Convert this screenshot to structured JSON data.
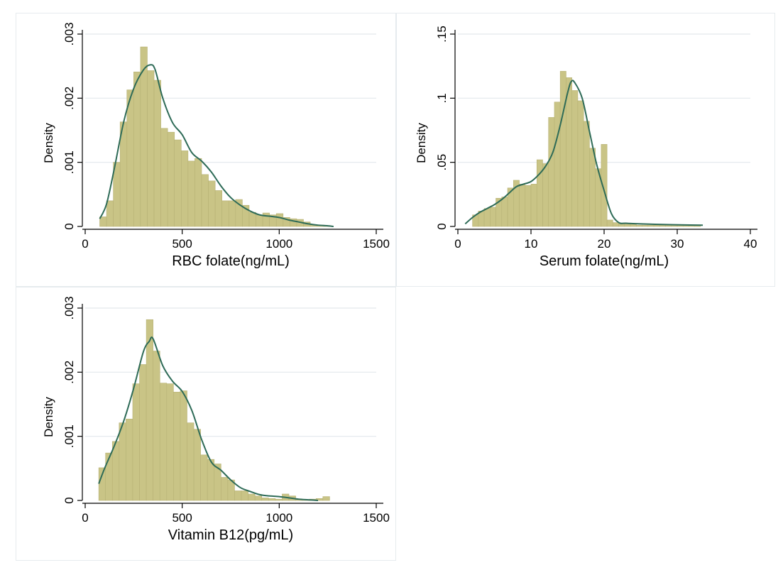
{
  "chart_data": [
    {
      "type": "bar",
      "subtype": "histogram-with-density",
      "xlabel": "RBC folate(ng/mL)",
      "ylabel": "Density",
      "xlim": [
        0,
        1500
      ],
      "ylim": [
        0,
        0.003
      ],
      "xticks": [
        0,
        500,
        1000,
        1500
      ],
      "xtick_labels": [
        "0",
        "500",
        "1000",
        "1500"
      ],
      "yticks": [
        0,
        0.001,
        0.002,
        0.003
      ],
      "ytick_labels": [
        "0",
        ".001",
        ".002",
        ".003"
      ],
      "grid": true,
      "bar_color": "#c9c486",
      "bar_edge": "#b7b275",
      "line_color": "#2e6b57",
      "bin_edges": [
        75,
        110,
        145,
        180,
        215,
        250,
        285,
        320,
        355,
        390,
        425,
        460,
        495,
        530,
        565,
        600,
        635,
        670,
        705,
        740,
        775,
        810,
        845,
        880,
        915,
        950,
        985,
        1020,
        1055,
        1090,
        1125,
        1160,
        1195,
        1230,
        1265
      ],
      "values": [
        0.00015,
        0.0004,
        0.001,
        0.00163,
        0.00213,
        0.00241,
        0.0028,
        0.00243,
        0.00228,
        0.00153,
        0.00147,
        0.00135,
        0.00118,
        0.00102,
        0.00106,
        0.00081,
        0.00071,
        0.00056,
        0.0004,
        0.0004,
        0.00042,
        0.00033,
        0.00022,
        0.00018,
        0.00021,
        0.00018,
        0.0002,
        0.00014,
        0.00012,
        0.00011,
        7e-05,
        3e-05,
        2e-05,
        1e-05
      ],
      "density_curve": {
        "x": [
          75,
          110,
          150,
          200,
          250,
          300,
          335,
          360,
          400,
          450,
          500,
          550,
          600,
          650,
          700,
          750,
          800,
          850,
          900,
          950,
          1000,
          1050,
          1100,
          1150,
          1200,
          1250,
          1280
        ],
        "y": [
          0.00012,
          0.00035,
          0.0009,
          0.00165,
          0.00215,
          0.00244,
          0.00252,
          0.00245,
          0.002,
          0.00162,
          0.00143,
          0.00115,
          0.00102,
          0.00085,
          0.00063,
          0.00045,
          0.00033,
          0.00024,
          0.00018,
          0.00016,
          0.00014,
          0.0001,
          7e-05,
          4e-05,
          2e-05,
          1e-05,
          0.0
        ]
      }
    },
    {
      "type": "bar",
      "subtype": "histogram-with-density",
      "xlabel": "Serum folate(ng/mL)",
      "ylabel": "Density",
      "xlim": [
        0,
        40
      ],
      "ylim": [
        0,
        0.15
      ],
      "xticks": [
        0,
        10,
        20,
        30,
        40
      ],
      "xtick_labels": [
        "0",
        "10",
        "20",
        "30",
        "40"
      ],
      "yticks": [
        0,
        0.05,
        0.1,
        0.15
      ],
      "ytick_labels": [
        "0",
        ".05",
        ".1",
        ".15"
      ],
      "grid": true,
      "bar_color": "#c9c486",
      "bar_edge": "#b7b275",
      "line_color": "#2e6b57",
      "bin_edges": [
        2,
        2.8,
        3.6,
        4.4,
        5.2,
        6.0,
        6.8,
        7.6,
        8.4,
        9.2,
        10.0,
        10.8,
        11.6,
        12.4,
        13.2,
        14.0,
        14.8,
        15.6,
        16.4,
        17.2,
        18.0,
        18.8,
        19.6,
        20.4,
        21.2,
        22.0,
        22.8,
        23.6,
        24.4,
        25.2,
        26.0,
        26.8,
        27.6,
        28.4,
        29.2,
        30.0,
        30.8,
        31.6,
        32.4,
        33.2
      ],
      "values": [
        0.009,
        0.012,
        0.014,
        0.015,
        0.022,
        0.023,
        0.03,
        0.036,
        0.033,
        0.032,
        0.033,
        0.052,
        0.049,
        0.085,
        0.097,
        0.121,
        0.116,
        0.106,
        0.098,
        0.082,
        0.061,
        0.045,
        0.064,
        0.005,
        0.003,
        0.002,
        0.002,
        0.002,
        0.001,
        0.001,
        0.001,
        0.001,
        0.001,
        0.001,
        0.001,
        0.001,
        0.001,
        0.001,
        0.001
      ],
      "density_curve": {
        "x": [
          1,
          2,
          3,
          4,
          5,
          6,
          7,
          8,
          9,
          10,
          11,
          12,
          13,
          14,
          15,
          15.5,
          16,
          17,
          18,
          19,
          20,
          21,
          22,
          23,
          25,
          28,
          31,
          33.5
        ],
        "y": [
          0.002,
          0.007,
          0.011,
          0.014,
          0.017,
          0.021,
          0.026,
          0.031,
          0.033,
          0.035,
          0.04,
          0.047,
          0.058,
          0.079,
          0.104,
          0.113,
          0.112,
          0.1,
          0.074,
          0.048,
          0.028,
          0.01,
          0.003,
          0.0025,
          0.002,
          0.0015,
          0.0012,
          0.001
        ]
      }
    },
    {
      "type": "bar",
      "subtype": "histogram-with-density",
      "xlabel": "Vitamin B12(pg/mL)",
      "ylabel": "Density",
      "xlim": [
        0,
        1500
      ],
      "ylim": [
        0,
        0.003
      ],
      "xticks": [
        0,
        500,
        1000,
        1500
      ],
      "xtick_labels": [
        "0",
        "500",
        "1000",
        "1500"
      ],
      "yticks": [
        0,
        0.001,
        0.002,
        0.003
      ],
      "ytick_labels": [
        "0",
        ".001",
        ".002",
        ".003"
      ],
      "grid": true,
      "bar_color": "#c9c486",
      "bar_edge": "#b7b275",
      "line_color": "#2e6b57",
      "bin_edges": [
        70,
        105,
        140,
        175,
        210,
        245,
        280,
        315,
        350,
        385,
        420,
        455,
        490,
        525,
        560,
        595,
        630,
        665,
        700,
        735,
        770,
        805,
        840,
        875,
        910,
        945,
        980,
        1015,
        1050,
        1085,
        1120,
        1155,
        1190,
        1225,
        1260
      ],
      "values": [
        0.00051,
        0.00074,
        0.00092,
        0.00121,
        0.00127,
        0.00182,
        0.00212,
        0.00282,
        0.00233,
        0.00183,
        0.00182,
        0.00169,
        0.00171,
        0.00121,
        0.00111,
        0.00071,
        0.00064,
        0.00057,
        0.00036,
        0.00032,
        0.00015,
        0.00015,
        0.0001,
        7e-05,
        4e-05,
        3e-05,
        2e-05,
        0.0001,
        7e-05,
        2e-05,
        1e-05,
        2e-05,
        3e-05,
        6e-05
      ],
      "density_curve": {
        "x": [
          70,
          100,
          150,
          200,
          250,
          300,
          330,
          350,
          400,
          450,
          500,
          550,
          600,
          650,
          700,
          750,
          800,
          850,
          900,
          950,
          1000,
          1050,
          1100,
          1150,
          1200
        ],
        "y": [
          0.00026,
          0.0005,
          0.00085,
          0.00125,
          0.00175,
          0.00232,
          0.00248,
          0.00252,
          0.0021,
          0.00186,
          0.0017,
          0.0014,
          0.00095,
          0.0006,
          0.00047,
          0.00032,
          0.0002,
          0.00014,
          9e-05,
          7e-05,
          6e-05,
          4e-05,
          2e-05,
          1e-05,
          0.0
        ]
      }
    }
  ]
}
